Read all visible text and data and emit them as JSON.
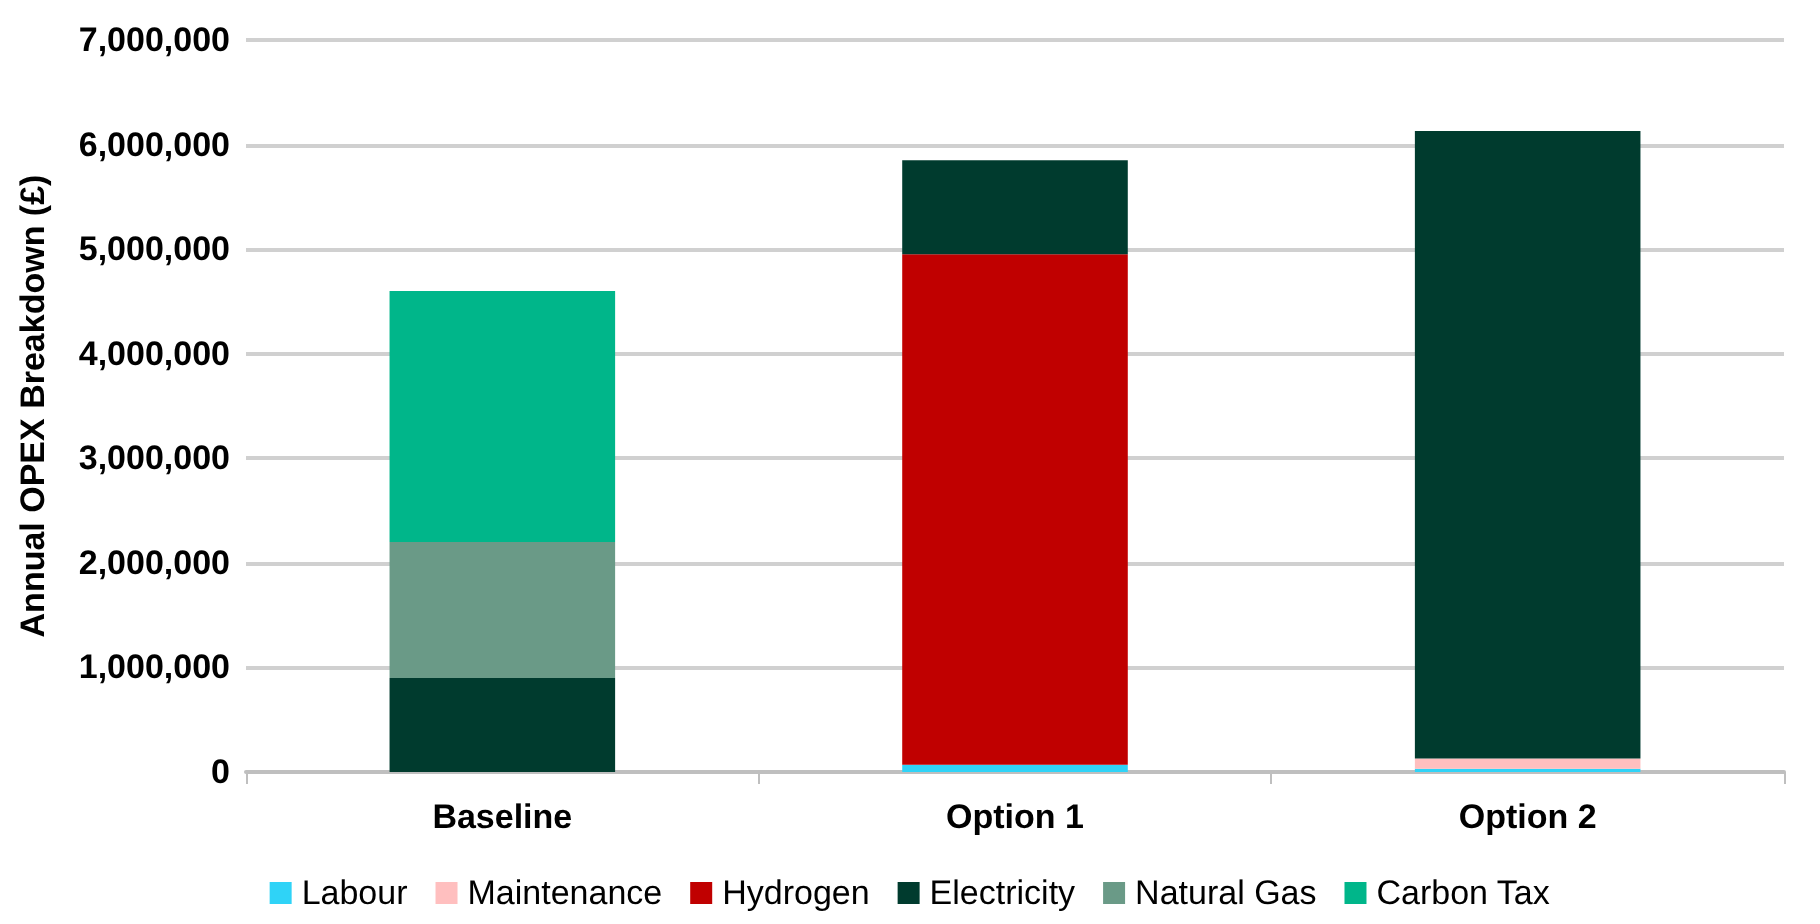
{
  "chart_data": {
    "type": "bar",
    "stacked": true,
    "ylabel": "Annual OPEX Breakdown (£)",
    "categories": [
      "Baseline",
      "Option 1",
      "Option 2"
    ],
    "series": [
      {
        "name": "Labour",
        "color": "#2fd3f7",
        "values": [
          0,
          70000,
          30000
        ]
      },
      {
        "name": "Maintenance",
        "color": "#ffbfbf",
        "values": [
          0,
          0,
          100000
        ]
      },
      {
        "name": "Hydrogen",
        "color": "#c00000",
        "values": [
          0,
          4880000,
          0
        ]
      },
      {
        "name": "Electricity",
        "color": "#003b2e",
        "values": [
          900000,
          900000,
          6000000
        ]
      },
      {
        "name": "Natural Gas",
        "color": "#6a9a87",
        "values": [
          1300000,
          0,
          0
        ]
      },
      {
        "name": "Carbon Tax",
        "color": "#00b68a",
        "values": [
          2400000,
          0,
          0
        ]
      }
    ],
    "ylim": [
      0,
      7000000
    ],
    "yticks": [
      0,
      {
        "value": 1000000,
        "label": "1,000,000"
      },
      {
        "value": 2000000,
        "label": "2,000,000"
      },
      {
        "value": 3000000,
        "label": "3,000,000"
      },
      {
        "value": 4000000,
        "label": "4,000,000"
      },
      {
        "value": 5000000,
        "label": "5,000,000"
      },
      {
        "value": 6000000,
        "label": "6,000,000"
      },
      {
        "value": 7000000,
        "label": "7,000,000"
      }
    ],
    "grid": "y",
    "legend": "bottom"
  }
}
